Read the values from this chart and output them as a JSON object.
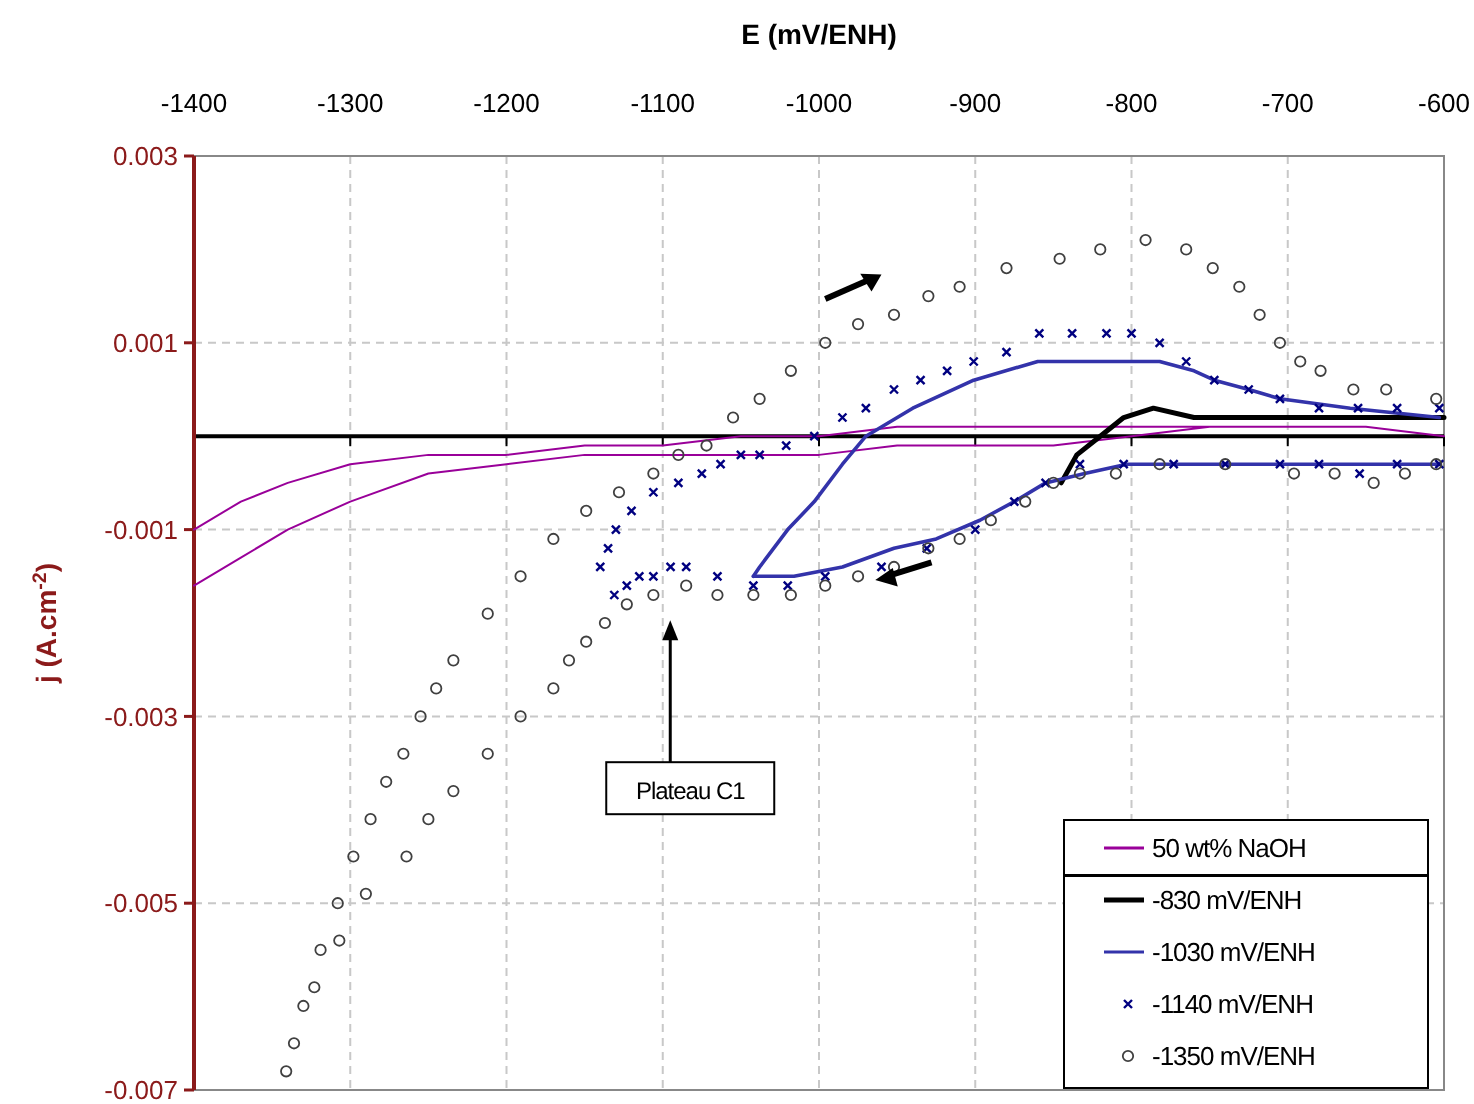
{
  "chart_data": {
    "type": "line",
    "xlabel": "E (mV/ENH)",
    "ylabel": "j (A.cm$^{-2}$)",
    "xlim": [
      -1400,
      -600
    ],
    "ylim": [
      -0.007,
      0.003
    ],
    "xticks": [
      -1400,
      -1300,
      -1200,
      -1100,
      -1000,
      -900,
      -800,
      -700,
      -600
    ],
    "yticks": [
      -0.007,
      -0.005,
      -0.003,
      -0.001,
      0.001,
      0.003
    ],
    "grid": true,
    "legend": "bottom right",
    "annotations": [
      "Plateau C1"
    ],
    "series": [
      {
        "name": "50 wt% NaOH",
        "type": "line",
        "color": "#990099",
        "x": [
          -1400,
          -1370,
          -1340,
          -1300,
          -1250,
          -1200,
          -1150,
          -1100,
          -1050,
          -1000,
          -950,
          -900,
          -850,
          -800,
          -750,
          -700,
          -650,
          -600,
          -600,
          -650,
          -700,
          -750,
          -800,
          -850,
          -900,
          -950,
          -1000,
          -1050,
          -1100,
          -1150,
          -1200,
          -1250,
          -1300,
          -1340,
          -1370,
          -1400
        ],
        "values": [
          -0.001,
          -0.0007,
          -0.0005,
          -0.0003,
          -0.0002,
          -0.0002,
          -0.0001,
          -0.0001,
          0,
          0,
          0.0001,
          0.0001,
          0.0001,
          0.0001,
          0.0001,
          0.0001,
          0.0001,
          0,
          0,
          0.0001,
          0.0001,
          0.0001,
          0,
          -0.0001,
          -0.0001,
          -0.0001,
          -0.0002,
          -0.0002,
          -0.0002,
          -0.0002,
          -0.0003,
          -0.0004,
          -0.0007,
          -0.001,
          -0.0013,
          -0.0016
        ]
      },
      {
        "name": "-830 mV/ENH",
        "type": "line",
        "color": "#000000",
        "x": [
          -845,
          -835,
          -820,
          -805,
          -786,
          -760,
          -720,
          -680,
          -640,
          -600
        ],
        "values": [
          -0.0005,
          -0.0002,
          0,
          0.0002,
          0.0003,
          0.0002,
          0.0002,
          0.0002,
          0.0002,
          0.0002
        ]
      },
      {
        "name": "-1030 mV/ENH",
        "type": "line",
        "color": "#3333aa",
        "x": [
          -1042,
          -1038,
          -1020,
          -1003,
          -985,
          -970,
          -940,
          -901,
          -860,
          -833,
          -805,
          -782,
          -760,
          -747,
          -725,
          -705,
          -660,
          -603
        ],
        "values": [
          -0.0015,
          -0.0014,
          -0.001,
          -0.0007,
          -0.0003,
          0,
          0.0003,
          0.0006,
          0.0008,
          0.0008,
          0.0008,
          0.0008,
          0.0007,
          0.0006,
          0.0005,
          0.0004,
          0.0003,
          0.0002
        ]
      },
      {
        "type": "line",
        "color": "#3333aa",
        "x": [
          -603,
          -650,
          -696,
          -750,
          -803,
          -830,
          -855,
          -875,
          -897,
          -925,
          -952,
          -985,
          -1016,
          -1042
        ],
        "values": [
          -0.0003,
          -0.0003,
          -0.0003,
          -0.0003,
          -0.0003,
          -0.0004,
          -0.0005,
          -0.0007,
          -0.0009,
          -0.0011,
          -0.0012,
          -0.0014,
          -0.0015,
          -0.0015
        ]
      },
      {
        "name": "-1140 mV/ENH",
        "type": "scatter",
        "marker": "cross",
        "color": "#000080",
        "x": [
          -1140,
          -1135,
          -1130,
          -1120,
          -1106,
          -1090,
          -1075,
          -1063,
          -1050,
          -1038,
          -1021,
          -1003,
          -985,
          -970,
          -952,
          -935,
          -918,
          -901,
          -880,
          -859,
          -838,
          -816,
          -800,
          -782,
          -765,
          -747,
          -725,
          -705,
          -680,
          -655,
          -630,
          -603,
          -603,
          -630,
          -654,
          -680,
          -705,
          -740,
          -773,
          -805,
          -833,
          -855,
          -875,
          -900,
          -931,
          -960,
          -996,
          -1020,
          -1042,
          -1065,
          -1085,
          -1095,
          -1106,
          -1115,
          -1123,
          -1131
        ],
        "values": [
          -0.0014,
          -0.0012,
          -0.001,
          -0.0008,
          -0.0006,
          -0.0005,
          -0.0004,
          -0.0003,
          -0.0002,
          -0.0002,
          -0.0001,
          0,
          0.0002,
          0.0003,
          0.0005,
          0.0006,
          0.0007,
          0.0008,
          0.0009,
          0.0011,
          0.0011,
          0.0011,
          0.0011,
          0.001,
          0.0008,
          0.0006,
          0.0005,
          0.0004,
          0.0003,
          0.0003,
          0.0003,
          0.0003,
          -0.0003,
          -0.0003,
          -0.0004,
          -0.0003,
          -0.0003,
          -0.0003,
          -0.0003,
          -0.0003,
          -0.0003,
          -0.0005,
          -0.0007,
          -0.001,
          -0.0012,
          -0.0014,
          -0.0015,
          -0.0016,
          -0.0016,
          -0.0015,
          -0.0014,
          -0.0014,
          -0.0015,
          -0.0015,
          -0.0016,
          -0.0017
        ]
      },
      {
        "name": "-1350 mV/ENH",
        "type": "scatter",
        "marker": "circle",
        "color": "#404040",
        "x": [
          -1341,
          -1330,
          -1319,
          -1308,
          -1298,
          -1287,
          -1277,
          -1266,
          -1255,
          -1245,
          -1234,
          -1212,
          -1191,
          -1170,
          -1149,
          -1128,
          -1106,
          -1090,
          -1072,
          -1055,
          -1038,
          -1018,
          -996,
          -975,
          -952,
          -930,
          -910,
          -880,
          -846,
          -820,
          -791,
          -765,
          -748,
          -731,
          -718,
          -705,
          -692,
          -679,
          -658,
          -637,
          -605,
          -605,
          -625,
          -645,
          -670,
          -696,
          -740,
          -782,
          -810,
          -833,
          -850,
          -868,
          -890,
          -910,
          -930,
          -952,
          -975,
          -996,
          -1018,
          -1042,
          -1065,
          -1085,
          -1106,
          -1123,
          -1137,
          -1149,
          -1160,
          -1170,
          -1191,
          -1212,
          -1234,
          -1250,
          -1264,
          -1290,
          -1307,
          -1323,
          -1336
        ],
        "values": [
          -0.0068,
          -0.0061,
          -0.0055,
          -0.005,
          -0.0045,
          -0.0041,
          -0.0037,
          -0.0034,
          -0.003,
          -0.0027,
          -0.0024,
          -0.0019,
          -0.0015,
          -0.0011,
          -0.0008,
          -0.0006,
          -0.0004,
          -0.0002,
          -0.0001,
          0.0002,
          0.0004,
          0.0007,
          0.001,
          0.0012,
          0.0013,
          0.0015,
          0.0016,
          0.0018,
          0.0019,
          0.002,
          0.0021,
          0.002,
          0.0018,
          0.0016,
          0.0013,
          0.001,
          0.0008,
          0.0007,
          0.0005,
          0.0005,
          0.0004,
          -0.0003,
          -0.0004,
          -0.0005,
          -0.0004,
          -0.0004,
          -0.0003,
          -0.0003,
          -0.0004,
          -0.0004,
          -0.0005,
          -0.0007,
          -0.0009,
          -0.0011,
          -0.0012,
          -0.0014,
          -0.0015,
          -0.0016,
          -0.0017,
          -0.0017,
          -0.0017,
          -0.0016,
          -0.0017,
          -0.0018,
          -0.002,
          -0.0022,
          -0.0024,
          -0.0027,
          -0.003,
          -0.0034,
          -0.0038,
          -0.0041,
          -0.0045,
          -0.0049,
          -0.0054,
          -0.0059,
          -0.0065
        ]
      }
    ]
  }
}
